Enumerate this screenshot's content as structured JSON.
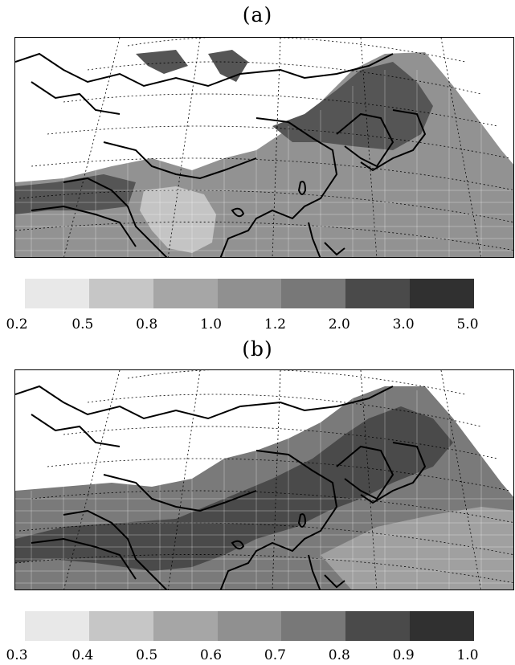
{
  "panel_a": {
    "label": "(a)",
    "colorbar": {
      "colors": [
        "#e8e8e8",
        "#c6c6c6",
        "#a6a6a6",
        "#909090",
        "#787878",
        "#4a4a4a",
        "#303030"
      ],
      "ticks": [
        "0.2",
        "0.5",
        "0.8",
        "1.0",
        "1.2",
        "2.0",
        "3.0",
        "5.0"
      ]
    },
    "field_color": "#929292",
    "dark_color": "#555555",
    "light_color": "#c4c4c4"
  },
  "panel_b": {
    "label": "(b)",
    "colorbar": {
      "colors": [
        "#e8e8e8",
        "#c6c6c6",
        "#a6a6a6",
        "#909090",
        "#787878",
        "#4a4a4a",
        "#303030"
      ],
      "ticks": [
        "0.3",
        "0.4",
        "0.5",
        "0.6",
        "0.7",
        "0.8",
        "0.9",
        "1.0"
      ]
    },
    "field_color": "#7a7a7a",
    "dark_color": "#4a4a4a",
    "light_color": "#a0a0a0"
  }
}
